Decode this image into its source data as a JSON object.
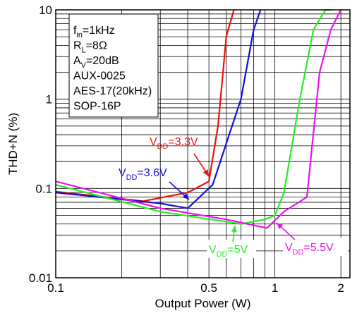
{
  "chart_data": {
    "type": "line",
    "xlabel": "Output Power (W)",
    "ylabel": "THD+N (%)",
    "x_scale": "log",
    "y_scale": "log",
    "xlim": [
      0.1,
      2.2
    ],
    "ylim": [
      0.01,
      10
    ],
    "grid": true,
    "x_ticks": [
      {
        "value": 0.1,
        "label": "0.1"
      },
      {
        "value": 0.5,
        "label": "0.5"
      },
      {
        "value": 1,
        "label": "1"
      },
      {
        "value": 2,
        "label": "2"
      }
    ],
    "y_ticks": [
      {
        "value": 0.01,
        "label": "0.01"
      },
      {
        "value": 0.1,
        "label": "0.1"
      },
      {
        "value": 1,
        "label": "1"
      },
      {
        "value": 10,
        "label": "10"
      }
    ],
    "conditions": [
      {
        "main": "f",
        "sub": "in",
        "rest": "=1kHz"
      },
      {
        "main": "R",
        "sub": "L",
        "rest": "=8Ω"
      },
      {
        "main": "A",
        "sub": "V",
        "rest": "=20dB"
      },
      {
        "main": "AUX-0025",
        "sub": "",
        "rest": ""
      },
      {
        "main": "AES-17(20kHz)",
        "sub": "",
        "rest": ""
      },
      {
        "main": "SOP-16P",
        "sub": "",
        "rest": ""
      }
    ],
    "series": [
      {
        "name": "VDD=3.3V",
        "label_main": "V",
        "label_sub": "DD",
        "label_rest": "=3.3V",
        "color": "#ee1111",
        "x": [
          0.1,
          0.25,
          0.4,
          0.5,
          0.55,
          0.6,
          0.65
        ],
        "y": [
          0.092,
          0.072,
          0.09,
          0.12,
          0.5,
          5,
          10
        ]
      },
      {
        "name": "VDD=3.6V",
        "label_main": "V",
        "label_sub": "DD",
        "label_rest": "=3.6V",
        "color": "#1111dd",
        "x": [
          0.1,
          0.3,
          0.4,
          0.52,
          0.7,
          0.8,
          0.86
        ],
        "y": [
          0.09,
          0.068,
          0.06,
          0.11,
          1,
          6,
          10
        ]
      },
      {
        "name": "VDD=5V",
        "label_main": "V",
        "label_sub": "DD",
        "label_rest": "=5V",
        "color": "#22ee22",
        "x": [
          0.1,
          0.3,
          0.7,
          0.9,
          1.0,
          1.1,
          1.3,
          1.5,
          1.7,
          1.8
        ],
        "y": [
          0.11,
          0.055,
          0.04,
          0.045,
          0.05,
          0.09,
          1,
          6,
          10,
          10
        ]
      },
      {
        "name": "VDD=5.5V",
        "label_main": "V",
        "label_sub": "DD",
        "label_rest": "=5.5V",
        "color": "#ee11ee",
        "x": [
          0.1,
          0.3,
          0.6,
          0.92,
          1.1,
          1.4,
          1.6,
          1.8,
          2.0
        ],
        "y": [
          0.12,
          0.06,
          0.045,
          0.036,
          0.055,
          0.08,
          2,
          6,
          10
        ]
      }
    ]
  }
}
